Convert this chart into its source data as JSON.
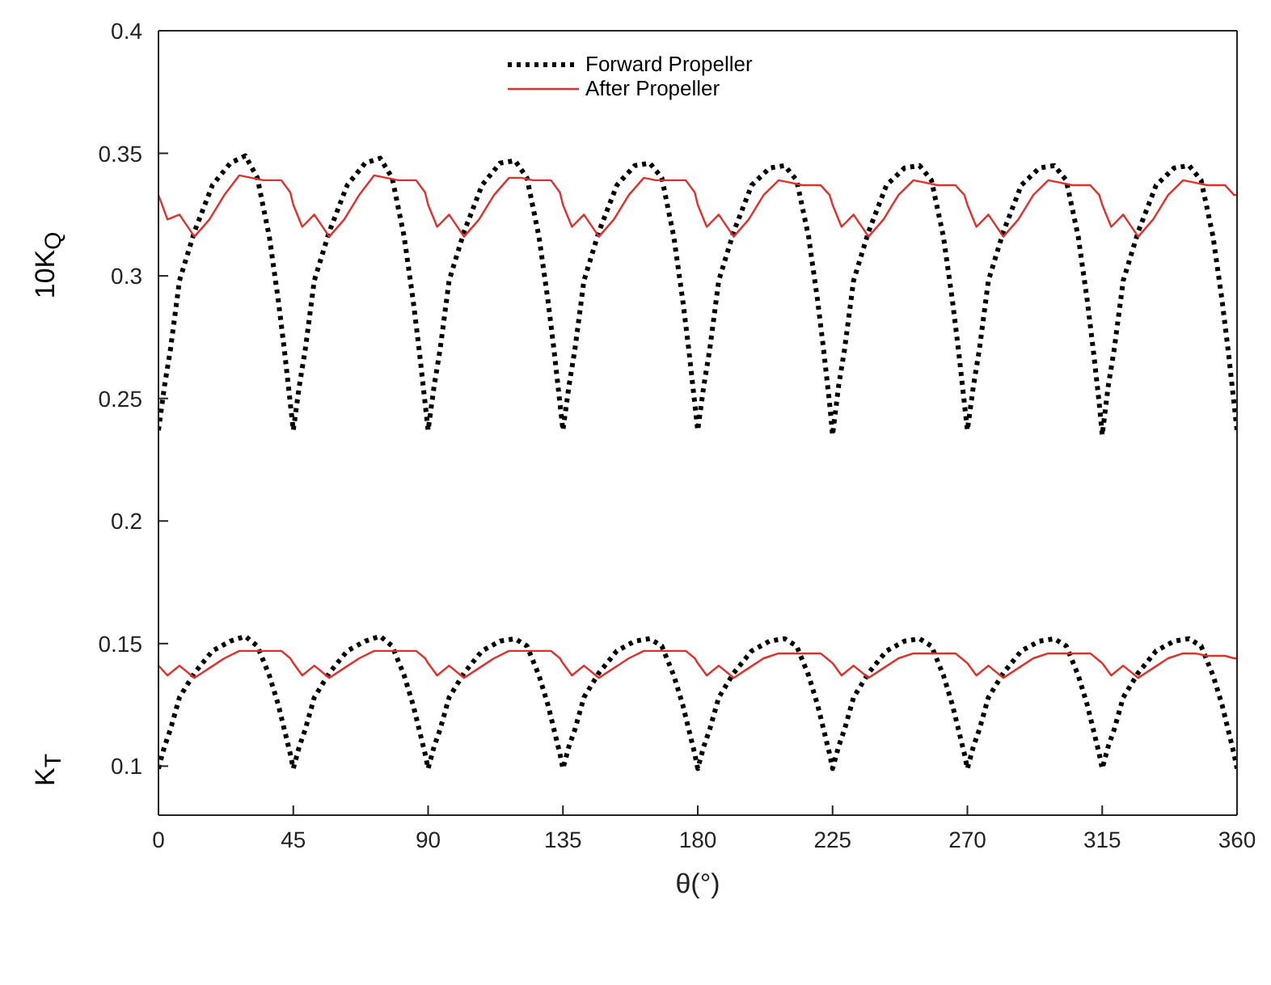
{
  "chart_data": {
    "type": "line",
    "ylabel": "10K$_{Q}$",
    "xlabel": "θ(°)",
    "annotations": [
      "K$_{T}$"
    ],
    "xlim": [
      0,
      360
    ],
    "xticks": [
      0,
      45,
      90,
      135,
      180,
      225,
      270,
      315,
      360
    ],
    "ylim": [
      0.08,
      0.4
    ],
    "yticks": [
      0.1,
      0.15,
      0.2,
      0.25,
      0.3,
      0.35,
      0.4
    ],
    "legend": "top",
    "marker": "none",
    "series": [
      {
        "name": "Forward Propeller",
        "color": "#000000",
        "line_style": "dotted",
        "x": [
          0,
          2,
          4,
          7,
          12,
          18,
          24,
          29,
          33,
          37,
          40,
          42,
          44,
          45,
          47,
          49,
          52,
          57,
          63,
          69,
          74,
          78,
          82,
          85,
          87,
          89,
          90,
          92,
          94,
          97,
          102,
          108,
          114,
          119,
          123,
          127,
          130,
          132,
          134,
          135,
          137,
          139,
          142,
          147,
          153,
          159,
          164,
          168,
          172,
          175,
          177,
          179,
          180,
          182,
          184,
          187,
          192,
          198,
          204,
          209,
          213,
          217,
          220,
          222,
          224,
          225,
          227,
          229,
          232,
          237,
          243,
          249,
          254,
          258,
          262,
          265,
          267,
          269,
          270,
          272,
          274,
          277,
          282,
          288,
          294,
          299,
          303,
          307,
          310,
          312,
          314,
          315,
          317,
          319,
          322,
          327,
          333,
          339,
          344,
          348,
          352,
          355,
          357,
          359,
          360
        ],
        "values": [
          0.237,
          0.255,
          0.27,
          0.298,
          0.318,
          0.337,
          0.346,
          0.349,
          0.34,
          0.316,
          0.29,
          0.27,
          0.248,
          0.237,
          0.255,
          0.27,
          0.298,
          0.318,
          0.337,
          0.346,
          0.348,
          0.34,
          0.316,
          0.29,
          0.27,
          0.248,
          0.237,
          0.255,
          0.27,
          0.298,
          0.318,
          0.337,
          0.346,
          0.347,
          0.34,
          0.316,
          0.29,
          0.27,
          0.248,
          0.237,
          0.255,
          0.27,
          0.298,
          0.318,
          0.337,
          0.345,
          0.346,
          0.34,
          0.316,
          0.29,
          0.27,
          0.248,
          0.237,
          0.255,
          0.27,
          0.298,
          0.318,
          0.337,
          0.344,
          0.345,
          0.339,
          0.316,
          0.29,
          0.27,
          0.248,
          0.235,
          0.255,
          0.27,
          0.298,
          0.318,
          0.337,
          0.344,
          0.345,
          0.339,
          0.316,
          0.29,
          0.27,
          0.248,
          0.237,
          0.255,
          0.27,
          0.298,
          0.318,
          0.337,
          0.344,
          0.345,
          0.339,
          0.316,
          0.29,
          0.27,
          0.248,
          0.235,
          0.255,
          0.27,
          0.298,
          0.318,
          0.337,
          0.344,
          0.345,
          0.339,
          0.316,
          0.29,
          0.27,
          0.248,
          0.237
        ]
      },
      {
        "name": "After Propeller",
        "color": "#e0302a",
        "line_style": "solid",
        "x": [
          0,
          3,
          7,
          12,
          17,
          22,
          27,
          31,
          35,
          41,
          44,
          45,
          48,
          52,
          57,
          62,
          67,
          72,
          76,
          80,
          86,
          89,
          90,
          93,
          97,
          102,
          107,
          112,
          117,
          121,
          125,
          131,
          134,
          135,
          138,
          142,
          147,
          152,
          157,
          162,
          166,
          170,
          176,
          179,
          180,
          183,
          187,
          192,
          197,
          202,
          207,
          211,
          215,
          221,
          224,
          225,
          228,
          232,
          237,
          242,
          247,
          252,
          256,
          260,
          266,
          269,
          270,
          273,
          277,
          282,
          287,
          292,
          297,
          301,
          305,
          311,
          314,
          315,
          318,
          322,
          327,
          332,
          337,
          342,
          346,
          350,
          356,
          359,
          360
        ],
        "values": [
          0.333,
          0.323,
          0.325,
          0.316,
          0.323,
          0.333,
          0.341,
          0.34,
          0.339,
          0.339,
          0.334,
          0.329,
          0.32,
          0.325,
          0.316,
          0.323,
          0.333,
          0.341,
          0.34,
          0.339,
          0.339,
          0.334,
          0.329,
          0.32,
          0.325,
          0.316,
          0.323,
          0.333,
          0.34,
          0.34,
          0.339,
          0.339,
          0.334,
          0.329,
          0.32,
          0.325,
          0.316,
          0.323,
          0.333,
          0.34,
          0.339,
          0.339,
          0.339,
          0.334,
          0.329,
          0.32,
          0.325,
          0.316,
          0.323,
          0.333,
          0.339,
          0.338,
          0.337,
          0.337,
          0.333,
          0.329,
          0.32,
          0.325,
          0.316,
          0.323,
          0.333,
          0.339,
          0.338,
          0.337,
          0.337,
          0.333,
          0.329,
          0.32,
          0.325,
          0.316,
          0.323,
          0.333,
          0.339,
          0.338,
          0.337,
          0.337,
          0.333,
          0.329,
          0.32,
          0.325,
          0.316,
          0.323,
          0.333,
          0.339,
          0.338,
          0.337,
          0.337,
          0.333,
          0.333
        ]
      },
      {
        "color": "#000000",
        "line_style": "dotted",
        "x": [
          0,
          2,
          4,
          7,
          12,
          18,
          24,
          29,
          33,
          37,
          40,
          42,
          44,
          45,
          47,
          49,
          52,
          57,
          63,
          69,
          74,
          78,
          82,
          85,
          87,
          89,
          90,
          92,
          94,
          97,
          102,
          108,
          114,
          119,
          123,
          127,
          130,
          132,
          134,
          135,
          137,
          139,
          142,
          147,
          153,
          159,
          164,
          168,
          172,
          175,
          177,
          179,
          180,
          182,
          184,
          187,
          192,
          198,
          204,
          209,
          213,
          217,
          220,
          222,
          224,
          225,
          227,
          229,
          232,
          237,
          243,
          249,
          254,
          258,
          262,
          265,
          267,
          269,
          270,
          272,
          274,
          277,
          282,
          288,
          294,
          299,
          303,
          307,
          310,
          312,
          314,
          315,
          317,
          319,
          322,
          327,
          333,
          339,
          344,
          348,
          352,
          355,
          357,
          359,
          360
        ],
        "values": [
          0.099,
          0.108,
          0.115,
          0.128,
          0.138,
          0.147,
          0.151,
          0.153,
          0.149,
          0.137,
          0.125,
          0.115,
          0.105,
          0.099,
          0.108,
          0.115,
          0.128,
          0.138,
          0.147,
          0.151,
          0.153,
          0.149,
          0.137,
          0.125,
          0.115,
          0.105,
          0.099,
          0.108,
          0.115,
          0.128,
          0.138,
          0.147,
          0.151,
          0.152,
          0.149,
          0.137,
          0.125,
          0.115,
          0.105,
          0.099,
          0.108,
          0.115,
          0.128,
          0.138,
          0.147,
          0.151,
          0.152,
          0.149,
          0.137,
          0.125,
          0.115,
          0.105,
          0.099,
          0.108,
          0.115,
          0.128,
          0.138,
          0.147,
          0.151,
          0.152,
          0.149,
          0.137,
          0.125,
          0.115,
          0.105,
          0.099,
          0.108,
          0.115,
          0.128,
          0.138,
          0.147,
          0.151,
          0.152,
          0.149,
          0.137,
          0.125,
          0.115,
          0.105,
          0.099,
          0.108,
          0.115,
          0.128,
          0.138,
          0.147,
          0.151,
          0.152,
          0.149,
          0.137,
          0.125,
          0.115,
          0.105,
          0.099,
          0.108,
          0.115,
          0.128,
          0.138,
          0.147,
          0.151,
          0.152,
          0.149,
          0.137,
          0.125,
          0.115,
          0.105,
          0.099
        ]
      },
      {
        "color": "#e0302a",
        "line_style": "solid",
        "x": [
          0,
          3,
          7,
          12,
          17,
          22,
          27,
          31,
          35,
          41,
          44,
          45,
          48,
          52,
          57,
          62,
          67,
          72,
          76,
          80,
          86,
          89,
          90,
          93,
          97,
          102,
          107,
          112,
          117,
          121,
          125,
          131,
          134,
          135,
          138,
          142,
          147,
          152,
          157,
          162,
          166,
          170,
          176,
          179,
          180,
          183,
          187,
          192,
          197,
          202,
          207,
          211,
          215,
          221,
          224,
          225,
          228,
          232,
          237,
          242,
          247,
          252,
          256,
          260,
          266,
          269,
          270,
          273,
          277,
          282,
          287,
          292,
          297,
          301,
          305,
          311,
          314,
          315,
          318,
          322,
          327,
          332,
          337,
          342,
          346,
          350,
          356,
          359,
          360
        ],
        "values": [
          0.141,
          0.137,
          0.141,
          0.136,
          0.14,
          0.144,
          0.147,
          0.147,
          0.147,
          0.147,
          0.144,
          0.142,
          0.137,
          0.141,
          0.136,
          0.14,
          0.144,
          0.147,
          0.147,
          0.147,
          0.147,
          0.144,
          0.142,
          0.137,
          0.141,
          0.136,
          0.14,
          0.144,
          0.147,
          0.147,
          0.147,
          0.147,
          0.144,
          0.142,
          0.137,
          0.141,
          0.136,
          0.14,
          0.144,
          0.147,
          0.147,
          0.147,
          0.147,
          0.144,
          0.142,
          0.137,
          0.141,
          0.136,
          0.14,
          0.144,
          0.146,
          0.146,
          0.146,
          0.146,
          0.143,
          0.142,
          0.137,
          0.141,
          0.136,
          0.14,
          0.144,
          0.146,
          0.146,
          0.146,
          0.146,
          0.143,
          0.142,
          0.137,
          0.141,
          0.136,
          0.14,
          0.144,
          0.146,
          0.146,
          0.146,
          0.146,
          0.143,
          0.142,
          0.137,
          0.141,
          0.136,
          0.14,
          0.144,
          0.146,
          0.146,
          0.145,
          0.145,
          0.144,
          0.144
        ]
      }
    ]
  }
}
